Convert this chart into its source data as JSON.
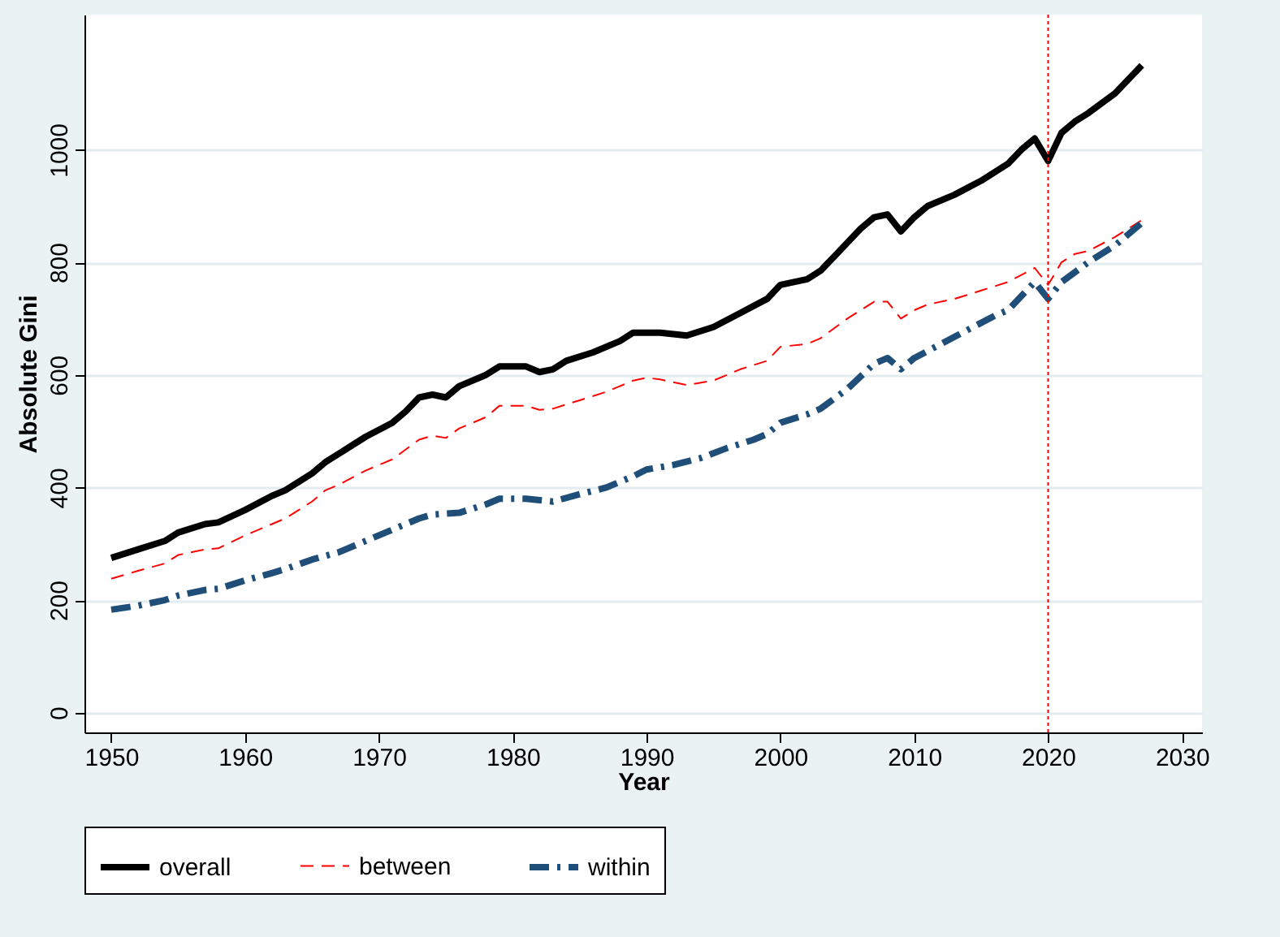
{
  "chart_data": {
    "type": "line",
    "xlabel": "Year",
    "ylabel": "Absolute Gini",
    "xlim": [
      1948,
      2031.5
    ],
    "ylim": [
      -35,
      1240
    ],
    "xticks": [
      1950,
      1960,
      1970,
      1980,
      1990,
      2000,
      2010,
      2020,
      2030
    ],
    "yticks": [
      0,
      200,
      400,
      600,
      800,
      1000
    ],
    "grid": "y",
    "legend": "bottom",
    "series": [
      {
        "name": "overall",
        "color": "#000000",
        "line_style": "solid",
        "x": [
          1950,
          1952,
          1954,
          1955,
          1957,
          1958,
          1960,
          1962,
          1963,
          1965,
          1966,
          1967,
          1969,
          1971,
          1972,
          1973,
          1974,
          1975,
          1976,
          1978,
          1979,
          1981,
          1982,
          1983,
          1984,
          1986,
          1988,
          1989,
          1991,
          1993,
          1995,
          1997,
          1999,
          2000,
          2002,
          2003,
          2004,
          2006,
          2007,
          2008,
          2009,
          2010,
          2011,
          2013,
          2015,
          2017,
          2018,
          2019,
          2020,
          2021,
          2022,
          2023,
          2025,
          2027
        ],
        "values": [
          275,
          290,
          305,
          320,
          335,
          338,
          360,
          385,
          395,
          425,
          445,
          460,
          490,
          515,
          535,
          560,
          565,
          560,
          580,
          600,
          615,
          615,
          605,
          610,
          625,
          640,
          660,
          675,
          675,
          670,
          685,
          710,
          735,
          760,
          770,
          785,
          810,
          860,
          880,
          885,
          855,
          880,
          900,
          920,
          945,
          975,
          1000,
          1020,
          980,
          1030,
          1050,
          1065,
          1100,
          1150
        ]
      },
      {
        "name": "between",
        "color": "#ff0000",
        "line_style": "dashed",
        "x": [
          1950,
          1952,
          1954,
          1955,
          1957,
          1958,
          1960,
          1962,
          1963,
          1965,
          1966,
          1967,
          1969,
          1971,
          1973,
          1974,
          1975,
          1976,
          1978,
          1979,
          1981,
          1982,
          1983,
          1985,
          1987,
          1989,
          1990,
          1991,
          1993,
          1995,
          1997,
          1999,
          2000,
          2002,
          2003,
          2005,
          2007,
          2008,
          2009,
          2010,
          2011,
          2013,
          2015,
          2017,
          2019,
          2020,
          2021,
          2022,
          2023,
          2025,
          2027
        ],
        "values": [
          238,
          252,
          265,
          280,
          290,
          292,
          315,
          335,
          345,
          375,
          395,
          405,
          430,
          450,
          485,
          492,
          488,
          505,
          525,
          545,
          545,
          538,
          540,
          555,
          570,
          590,
          595,
          592,
          582,
          590,
          610,
          625,
          650,
          655,
          665,
          700,
          730,
          730,
          700,
          715,
          725,
          735,
          750,
          765,
          790,
          760,
          800,
          815,
          820,
          845,
          875
        ]
      },
      {
        "name": "within",
        "color": "#1f4e79",
        "line_style": "dashed",
        "x": [
          1950,
          1952,
          1954,
          1955,
          1957,
          1958,
          1960,
          1962,
          1963,
          1965,
          1967,
          1969,
          1971,
          1973,
          1974,
          1976,
          1978,
          1979,
          1981,
          1983,
          1985,
          1987,
          1989,
          1990,
          1992,
          1994,
          1996,
          1998,
          1999,
          2000,
          2002,
          2003,
          2005,
          2007,
          2008,
          2009,
          2010,
          2012,
          2014,
          2016,
          2017,
          2019,
          2020,
          2021,
          2023,
          2025,
          2027
        ],
        "values": [
          183,
          190,
          200,
          208,
          218,
          220,
          235,
          248,
          255,
          272,
          285,
          305,
          325,
          345,
          352,
          355,
          370,
          380,
          380,
          375,
          388,
          400,
          420,
          432,
          440,
          452,
          470,
          485,
          495,
          515,
          530,
          540,
          575,
          620,
          630,
          610,
          630,
          655,
          680,
          705,
          715,
          765,
          735,
          765,
          800,
          830,
          870
        ]
      }
    ],
    "ref_lines": [
      {
        "axis": "x",
        "value": 2020,
        "color": "#ff0000",
        "line_style": "dotted"
      }
    ]
  }
}
